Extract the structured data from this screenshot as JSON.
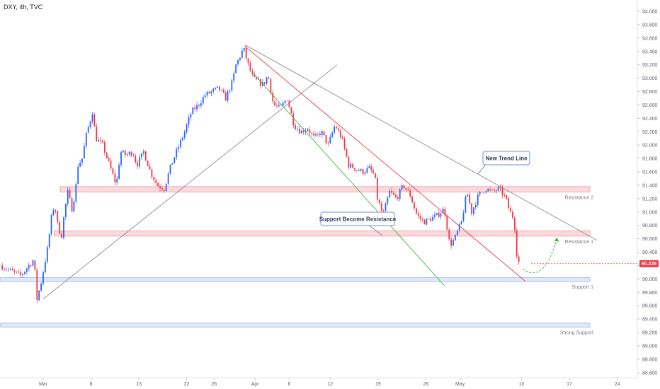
{
  "chart_data": {
    "type": "candlestick",
    "title": "DXY, 4h, TVC",
    "colors": {
      "up": "#2962ff",
      "down": "#f23645",
      "resistance_zone": "#f8c9cc",
      "support_zone": "#cfe0f7",
      "downtrend_line": "#f23645",
      "channel_line": "#4caf50",
      "trend_line": "#8c8c8c",
      "forecast": "#4caf50",
      "price_tag": "#f23645"
    },
    "y_axis": {
      "min": 88.6,
      "max": 94.1,
      "ticks": [
        "94.000",
        "93.800",
        "93.600",
        "93.400",
        "93.200",
        "93.000",
        "92.800",
        "92.600",
        "92.400",
        "92.200",
        "92.000",
        "91.800",
        "91.600",
        "91.400",
        "91.200",
        "91.000",
        "90.800",
        "90.600",
        "90.400",
        "90.200",
        "90.000",
        "89.800",
        "89.600",
        "89.400",
        "89.200",
        "89.000",
        "88.800",
        "88.600"
      ]
    },
    "x_axis": {
      "ticks": [
        {
          "label": "Mar",
          "d": 0
        },
        {
          "label": "8",
          "d": 7
        },
        {
          "label": "15",
          "d": 14
        },
        {
          "label": "22",
          "d": 21
        },
        {
          "label": "26",
          "d": 25
        },
        {
          "label": "Apr",
          "d": 31
        },
        {
          "label": "6",
          "d": 36
        },
        {
          "label": "12",
          "d": 42
        },
        {
          "label": "19",
          "d": 49
        },
        {
          "label": "26",
          "d": 56
        },
        {
          "label": "May",
          "d": 61
        },
        {
          "label": "10",
          "d": 70
        },
        {
          "label": "17",
          "d": 77
        },
        {
          "label": "24",
          "d": 84
        }
      ]
    },
    "price_path": [
      {
        "d": -6,
        "p": 90.2
      },
      {
        "d": -3,
        "p": 90.05
      },
      {
        "d": -1,
        "p": 90.3
      },
      {
        "d": -0.8,
        "p": 89.9
      },
      {
        "d": -0.6,
        "p": 89.7
      },
      {
        "d": 0,
        "p": 89.95
      },
      {
        "d": 1,
        "p": 90.5
      },
      {
        "d": 1.6,
        "p": 91.0
      },
      {
        "d": 2,
        "p": 91.1
      },
      {
        "d": 2.5,
        "p": 90.75
      },
      {
        "d": 3,
        "p": 90.65
      },
      {
        "d": 3.4,
        "p": 91.0
      },
      {
        "d": 4,
        "p": 91.35
      },
      {
        "d": 4.4,
        "p": 91.0
      },
      {
        "d": 5,
        "p": 91.3
      },
      {
        "d": 5.4,
        "p": 91.7
      },
      {
        "d": 6,
        "p": 91.8
      },
      {
        "d": 6.6,
        "p": 92.15
      },
      {
        "d": 7,
        "p": 92.3
      },
      {
        "d": 7.5,
        "p": 92.5
      },
      {
        "d": 8,
        "p": 92.1
      },
      {
        "d": 9,
        "p": 92.0
      },
      {
        "d": 10,
        "p": 91.7
      },
      {
        "d": 11,
        "p": 91.4
      },
      {
        "d": 11.6,
        "p": 91.9
      },
      {
        "d": 12.4,
        "p": 91.85
      },
      {
        "d": 13.4,
        "p": 91.9
      },
      {
        "d": 14,
        "p": 91.7
      },
      {
        "d": 15,
        "p": 91.9
      },
      {
        "d": 16,
        "p": 91.6
      },
      {
        "d": 17,
        "p": 91.4
      },
      {
        "d": 18,
        "p": 91.35
      },
      {
        "d": 19,
        "p": 91.7
      },
      {
        "d": 20,
        "p": 91.95
      },
      {
        "d": 21,
        "p": 92.2
      },
      {
        "d": 22,
        "p": 92.5
      },
      {
        "d": 23,
        "p": 92.6
      },
      {
        "d": 24,
        "p": 92.75
      },
      {
        "d": 25,
        "p": 92.8
      },
      {
        "d": 26,
        "p": 92.85
      },
      {
        "d": 27,
        "p": 92.7
      },
      {
        "d": 28,
        "p": 92.95
      },
      {
        "d": 28.5,
        "p": 93.2
      },
      {
        "d": 29,
        "p": 93.3
      },
      {
        "d": 29.6,
        "p": 93.45
      },
      {
        "d": 30.3,
        "p": 93.2
      },
      {
        "d": 31,
        "p": 93.0
      },
      {
        "d": 31.7,
        "p": 92.95
      },
      {
        "d": 32.5,
        "p": 92.9
      },
      {
        "d": 33.2,
        "p": 93.05
      },
      {
        "d": 34,
        "p": 92.6
      },
      {
        "d": 35,
        "p": 92.55
      },
      {
        "d": 36,
        "p": 92.7
      },
      {
        "d": 37,
        "p": 92.3
      },
      {
        "d": 38,
        "p": 92.2
      },
      {
        "d": 39,
        "p": 92.25
      },
      {
        "d": 40,
        "p": 92.1
      },
      {
        "d": 41,
        "p": 92.2
      },
      {
        "d": 42,
        "p": 92.0
      },
      {
        "d": 43,
        "p": 92.3
      },
      {
        "d": 44,
        "p": 92.1
      },
      {
        "d": 45,
        "p": 91.7
      },
      {
        "d": 46,
        "p": 91.65
      },
      {
        "d": 47,
        "p": 91.6
      },
      {
        "d": 48,
        "p": 91.65
      },
      {
        "d": 48.8,
        "p": 91.55
      },
      {
        "d": 49.2,
        "p": 91.2
      },
      {
        "d": 50,
        "p": 90.95
      },
      {
        "d": 51,
        "p": 91.3
      },
      {
        "d": 52,
        "p": 91.2
      },
      {
        "d": 53,
        "p": 91.4
      },
      {
        "d": 54,
        "p": 91.25
      },
      {
        "d": 55,
        "p": 90.95
      },
      {
        "d": 56,
        "p": 90.85
      },
      {
        "d": 57,
        "p": 90.9
      },
      {
        "d": 58,
        "p": 90.95
      },
      {
        "d": 59,
        "p": 91.05
      },
      {
        "d": 59.8,
        "p": 90.5
      },
      {
        "d": 60.5,
        "p": 90.6
      },
      {
        "d": 61.5,
        "p": 90.85
      },
      {
        "d": 62.3,
        "p": 91.3
      },
      {
        "d": 63,
        "p": 91.0
      },
      {
        "d": 64,
        "p": 91.25
      },
      {
        "d": 65,
        "p": 91.35
      },
      {
        "d": 66,
        "p": 91.3
      },
      {
        "d": 67,
        "p": 91.35
      },
      {
        "d": 68,
        "p": 91.2
      },
      {
        "d": 68.6,
        "p": 91.0
      },
      {
        "d": 69.2,
        "p": 90.9
      },
      {
        "d": 69.7,
        "p": 90.25
      }
    ],
    "drawings": {
      "resistance_2": {
        "label": "Resistance 2",
        "p_low": 91.3,
        "p_high": 91.38,
        "d_start": 2.5,
        "d_end": 80
      },
      "resistance_1": {
        "label": "Resistance 1",
        "p_low": 90.64,
        "p_high": 90.72,
        "d_start": 1.6,
        "d_end": 80
      },
      "support_1": {
        "label": "Support 1",
        "p_low": 89.96,
        "p_high": 90.02,
        "d_start": -8,
        "d_end": 80
      },
      "strong_support": {
        "label": "Strong Support",
        "p_low": 89.28,
        "p_high": 89.34,
        "d_start": -8,
        "d_end": 80
      },
      "uptrend_line": {
        "from": {
          "d": 0,
          "p": 89.7
        },
        "to": {
          "d": 43,
          "p": 93.2
        }
      },
      "long_trend_line": {
        "from": {
          "d": 29.5,
          "p": 93.5
        },
        "to": {
          "d": 81,
          "p": 90.58
        }
      },
      "red_channel_line": {
        "from": {
          "d": 29.5,
          "p": 93.48
        },
        "to": {
          "d": 70.5,
          "p": 89.97
        }
      },
      "green_channel_line": {
        "from": {
          "d": 30.5,
          "p": 93.1
        },
        "to": {
          "d": 58.7,
          "p": 89.9
        }
      },
      "forecast_arrow": [
        {
          "d": 70.2,
          "p": 90.15
        },
        {
          "d": 72.5,
          "p": 89.98
        },
        {
          "d": 74,
          "p": 90.2
        },
        {
          "d": 75.2,
          "p": 90.6
        }
      ],
      "current_price": {
        "label": "90.229",
        "p": 90.229
      }
    },
    "callouts": {
      "new_trend_line": {
        "label": "New Trend Line"
      },
      "support_become_resistance": {
        "label": "Support Become Resistance"
      }
    }
  }
}
